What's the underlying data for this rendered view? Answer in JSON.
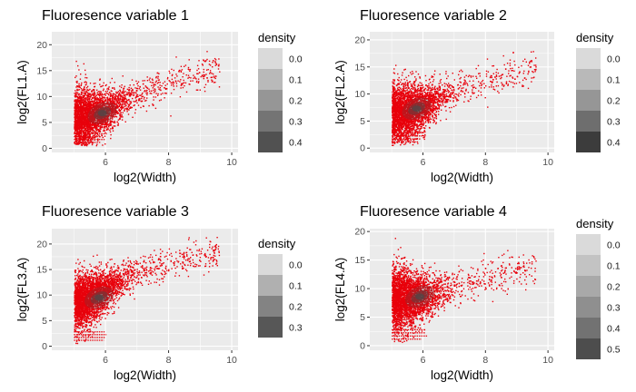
{
  "chart_data": [
    {
      "type": "scatter",
      "title": "Fluoresence variable 1",
      "xlabel": "log2(Width)",
      "ylabel": "log2(FL1.A)",
      "xlim": [
        4.3,
        10.2
      ],
      "ylim": [
        -0.8,
        22.5
      ],
      "xticks": [
        6,
        8,
        10
      ],
      "yticks": [
        0,
        5,
        10,
        15,
        20
      ],
      "legend": {
        "title": "density",
        "labels": [
          "0.0",
          "0.1",
          "0.2",
          "0.3",
          "0.4"
        ],
        "colors": [
          "#dadada",
          "#b9b9b9",
          "#969696",
          "#747474",
          "#515151"
        ],
        "position": "right"
      },
      "x_lower_bound": 5.0,
      "trend": {
        "x": [
          5.0,
          5.5,
          6.0,
          6.5,
          7.0,
          7.5,
          8.0,
          8.5,
          9.0,
          9.5
        ],
        "y": [
          6.0,
          6.3,
          7.3,
          9.0,
          10.5,
          11.8,
          13.0,
          13.8,
          14.6,
          15.5
        ]
      },
      "core": {
        "x": 5.9,
        "y": 6.8
      }
    },
    {
      "type": "scatter",
      "title": "Fluoresence variable 2",
      "xlabel": "log2(Width)",
      "ylabel": "log2(FL2.A)",
      "xlim": [
        4.3,
        10.2
      ],
      "ylim": [
        -0.8,
        21.5
      ],
      "xticks": [
        6,
        8,
        10
      ],
      "yticks": [
        0,
        5,
        10,
        15,
        20
      ],
      "legend": {
        "title": "density",
        "labels": [
          "0.0",
          "0.1",
          "0.2",
          "0.3",
          "0.4"
        ],
        "colors": [
          "#dadada",
          "#b9b9b9",
          "#969696",
          "#6e6e6e",
          "#3c3c3c"
        ],
        "position": "right"
      },
      "x_lower_bound": 5.0,
      "trend": {
        "x": [
          5.0,
          5.5,
          6.0,
          6.5,
          7.0,
          7.5,
          8.0,
          8.5,
          9.0,
          9.5
        ],
        "y": [
          6.5,
          6.8,
          7.8,
          9.3,
          10.8,
          11.7,
          12.5,
          13.3,
          14.0,
          15.0
        ]
      },
      "core": {
        "x": 5.8,
        "y": 7.3
      }
    },
    {
      "type": "scatter",
      "title": "Fluoresence variable 3",
      "xlabel": "log2(Width)",
      "ylabel": "log2(FL3.A)",
      "xlim": [
        4.3,
        10.2
      ],
      "ylim": [
        -0.8,
        23.0
      ],
      "xticks": [
        6,
        8,
        10
      ],
      "yticks": [
        0,
        5,
        10,
        15,
        20
      ],
      "legend": {
        "title": "density",
        "labels": [
          "0.0",
          "0.1",
          "0.2",
          "0.3"
        ],
        "colors": [
          "#dadada",
          "#b0b0b0",
          "#838383",
          "#575757"
        ],
        "position": "right"
      },
      "x_lower_bound": 5.0,
      "trend": {
        "x": [
          5.0,
          5.5,
          6.0,
          6.5,
          7.0,
          7.5,
          8.0,
          8.5,
          9.0,
          9.5
        ],
        "y": [
          8.5,
          9.3,
          11.0,
          13.0,
          14.5,
          15.5,
          16.3,
          17.0,
          17.5,
          18.2
        ]
      },
      "core": {
        "x": 5.8,
        "y": 9.5
      }
    },
    {
      "type": "scatter",
      "title": "Fluoresence variable 4",
      "xlabel": "log2(Width)",
      "ylabel": "log2(FL4.A)",
      "xlim": [
        4.3,
        10.2
      ],
      "ylim": [
        -0.8,
        20.5
      ],
      "xticks": [
        6,
        8,
        10
      ],
      "yticks": [
        0,
        5,
        10,
        15,
        20
      ],
      "legend": {
        "title": "density",
        "labels": [
          "0.0",
          "0.1",
          "0.2",
          "0.3",
          "0.4",
          "0.5"
        ],
        "colors": [
          "#dadada",
          "#c3c3c3",
          "#a9a9a9",
          "#8f8f8f",
          "#727272",
          "#4d4d4d"
        ],
        "position": "right"
      },
      "x_lower_bound": 5.0,
      "trend": {
        "x": [
          5.0,
          5.5,
          6.0,
          6.5,
          7.0,
          7.5,
          8.0,
          8.5,
          9.0,
          9.5
        ],
        "y": [
          8.0,
          8.3,
          8.8,
          9.5,
          10.3,
          11.0,
          11.8,
          12.5,
          13.2,
          14.0
        ]
      },
      "core": {
        "x": 5.9,
        "y": 8.6
      }
    }
  ],
  "colors": {
    "points": "#e8000b",
    "panel": "#ebebeb",
    "grid": "#ffffff",
    "density_core": "#4a4a4a"
  }
}
